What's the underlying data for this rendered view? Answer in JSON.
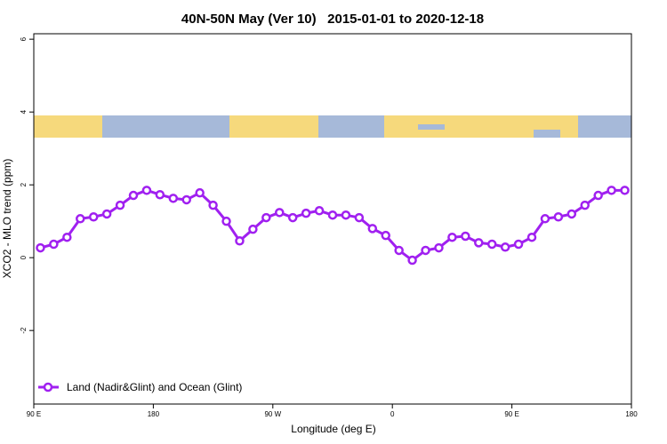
{
  "chart_data": {
    "type": "line",
    "title": "40N-50N May (Ver 10)   2015-01-01 to 2020-12-18",
    "x_label": "Longitude (deg E)",
    "y_label": "XCO2 - MLO trend (ppm)",
    "x": [
      95,
      105,
      115,
      125,
      135,
      145,
      155,
      165,
      175,
      185,
      195,
      205,
      215,
      225,
      235,
      245,
      255,
      265,
      275,
      285,
      295,
      305,
      315,
      325,
      335,
      345,
      355,
      365,
      375,
      385,
      395,
      405,
      415,
      425,
      435,
      445,
      455,
      465,
      475,
      485,
      495,
      505,
      515,
      525,
      535
    ],
    "series": [
      {
        "name": "Land (Nadir&Glint) and Ocean (Glint)",
        "color": "#a020f0",
        "values": [
          0.27,
          0.37,
          0.56,
          1.07,
          1.12,
          1.2,
          1.44,
          1.71,
          1.85,
          1.73,
          1.63,
          1.59,
          1.78,
          1.44,
          1.0,
          0.46,
          0.78,
          1.1,
          1.24,
          1.1,
          1.22,
          1.29,
          1.17,
          1.17,
          1.1,
          0.8,
          0.61,
          0.2,
          -0.07,
          0.2,
          0.27,
          0.56,
          0.59,
          0.41,
          0.37,
          0.29,
          0.37,
          0.56,
          1.07,
          1.12,
          1.2,
          1.44,
          1.71,
          1.85,
          1.85
        ]
      }
    ],
    "xlim": [
      90,
      540
    ],
    "xticks": [
      {
        "value": 90,
        "label": "90 E"
      },
      180,
      {
        "value": 270,
        "label": "90 W"
      },
      {
        "value": 360,
        "label": "0"
      },
      {
        "value": 450,
        "label": "90 E"
      },
      {
        "value": 540,
        "label": "180"
      }
    ],
    "ylim": [
      -4.02,
      6.15
    ],
    "yticks": [
      -2,
      0,
      2,
      4,
      6
    ],
    "legend": "bottom-left"
  }
}
